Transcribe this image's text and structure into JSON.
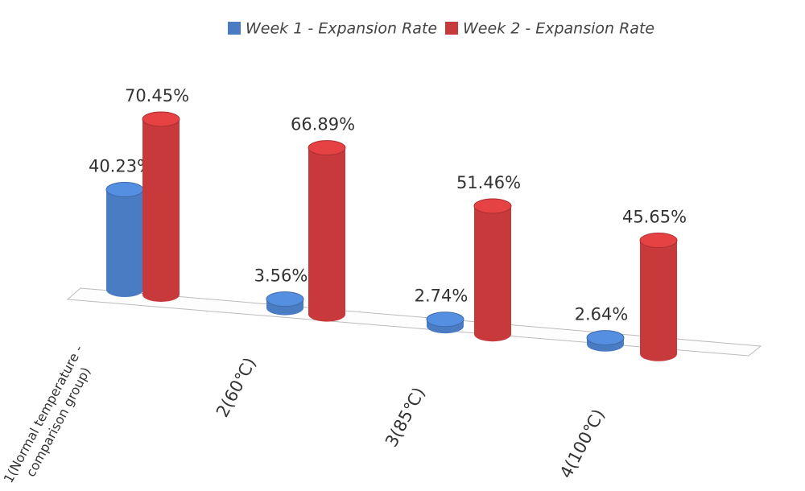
{
  "chart_data": {
    "type": "bar",
    "categories": [
      "1(Normal temperature - comparison group)",
      "2(60℃)",
      "3(85℃)",
      "4(100℃)"
    ],
    "series": [
      {
        "name": "Week 1 - Expansion Rate",
        "color": "#4a7cc4",
        "values": [
          40.23,
          3.56,
          2.74,
          2.64
        ],
        "value_labels": [
          "40.23%",
          "3.56%",
          "2.74%",
          "2.64%"
        ]
      },
      {
        "name": "Week 2 - Expansion Rate",
        "color": "#c8393b",
        "values": [
          70.45,
          66.89,
          51.46,
          45.65
        ],
        "value_labels": [
          "70.45%",
          "66.89%",
          "51.46%",
          "45.65%"
        ]
      }
    ]
  }
}
